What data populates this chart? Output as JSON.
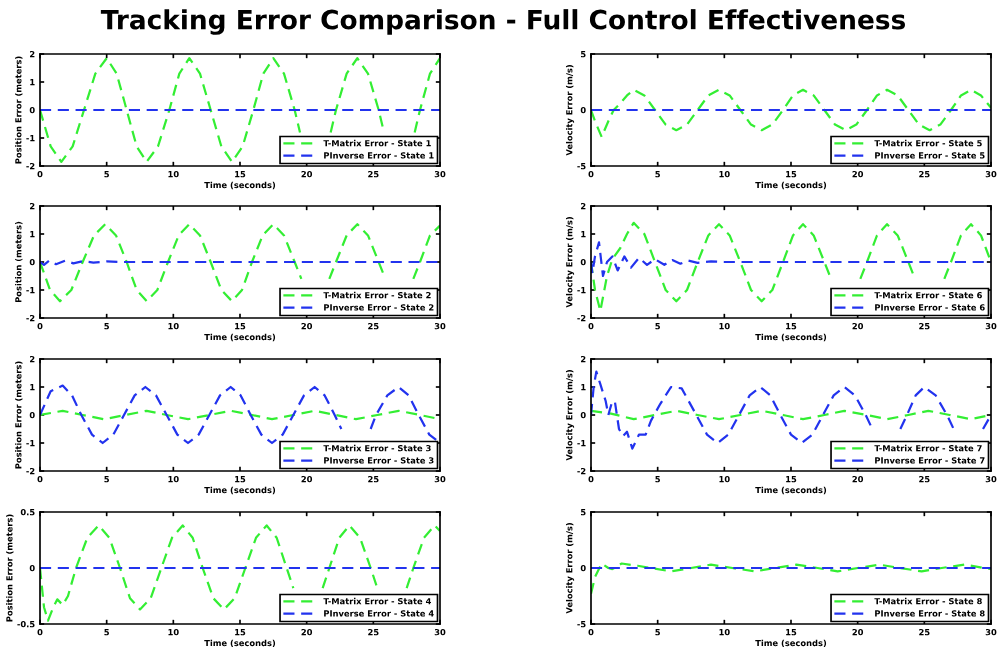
{
  "chart_data": [
    {
      "type": "line",
      "title": "Tracking Error Comparison - Full Control Effectiveness",
      "xlabel": "Time (seconds)",
      "ylabel": "Position Error (meters)",
      "xlim": [
        0,
        30
      ],
      "xticks": [
        0,
        5,
        10,
        15,
        20,
        25,
        30
      ],
      "ylim": [
        -2,
        2
      ],
      "yticks": [
        -2,
        -1,
        0,
        1,
        2
      ],
      "legend": "bottom right",
      "line_style": "dashed",
      "series": [
        {
          "name": "T-Matrix Error - State 1",
          "color": "#33ee33",
          "x": [
            0,
            0.8,
            1.6,
            2.45,
            3.3,
            4.15,
            5,
            5.75,
            6.5,
            7.25,
            8,
            8.85,
            9.7,
            10.45,
            11.2,
            12,
            12.8,
            13.6,
            14.4,
            15.2,
            16,
            16.75,
            17.5,
            18.3,
            19.1,
            19.5,
            20.7,
            21.8,
            22.2,
            23,
            23.8,
            24.6,
            25.4,
            25.8,
            27,
            28.1,
            28.5,
            29.25,
            30
          ],
          "values": [
            0,
            -1.3,
            -1.85,
            -1.3,
            0,
            1.3,
            1.85,
            1.3,
            0,
            -1.3,
            -1.85,
            -1.3,
            0,
            1.3,
            1.85,
            1.3,
            0,
            -1.3,
            -1.85,
            -1.3,
            0,
            1.3,
            1.85,
            1.3,
            0,
            -0.8,
            null,
            -0.8,
            0,
            1.3,
            1.85,
            1.3,
            0,
            -0.8,
            null,
            -0.8,
            0,
            1.3,
            1.85
          ]
        },
        {
          "name": "PInverse Error - State 1",
          "color": "#2233ee",
          "x": [
            0,
            30
          ],
          "values": [
            0,
            0
          ]
        }
      ]
    },
    {
      "type": "line",
      "xlabel": "Time (seconds)",
      "ylabel": "Velocity Error (m/s)",
      "xlim": [
        0,
        30
      ],
      "xticks": [
        0,
        5,
        10,
        15,
        20,
        25,
        30
      ],
      "ylim": [
        -5,
        5
      ],
      "yticks": [
        -5,
        0,
        5
      ],
      "legend": "bottom right",
      "line_style": "dashed",
      "series": [
        {
          "name": "T-Matrix Error - State 5",
          "color": "#33ee33",
          "x": [
            0,
            0.3,
            0.8,
            1.3,
            1.7,
            2.2,
            2.7,
            3.2,
            4,
            4.8,
            5.6,
            6.4,
            7.2,
            8,
            8.8,
            9.6,
            10.4,
            11.2,
            12,
            12.8,
            13.6,
            14.4,
            15.15,
            15.9,
            16.7,
            17.5,
            18.3,
            19.1,
            19.9,
            20.7,
            21.45,
            22.2,
            23,
            23.8,
            24.6,
            25.4,
            26.2,
            27,
            27.75,
            28.5,
            29.25,
            30
          ],
          "values": [
            0,
            -1,
            -2.4,
            -1,
            0,
            0.6,
            1.3,
            1.8,
            1.3,
            0,
            -1.3,
            -1.8,
            -1.3,
            0,
            1.3,
            1.8,
            1.3,
            0,
            -1.3,
            -1.8,
            -1.3,
            0,
            1.3,
            1.8,
            1.3,
            0,
            -1.3,
            -1.8,
            -1.3,
            0,
            1.3,
            1.8,
            1.3,
            0,
            -1.3,
            -1.8,
            -1.3,
            0,
            1.3,
            1.8,
            1.3,
            0.2
          ]
        },
        {
          "name": "PInverse Error - State 5",
          "color": "#2233ee",
          "x": [
            0,
            30
          ],
          "values": [
            0,
            0
          ]
        }
      ]
    },
    {
      "type": "line",
      "xlabel": "Time (seconds)",
      "ylabel": "Position (meters)",
      "xlim": [
        0,
        30
      ],
      "xticks": [
        0,
        5,
        10,
        15,
        20,
        25,
        30
      ],
      "ylim": [
        -2,
        2
      ],
      "yticks": [
        -2,
        -1,
        0,
        1,
        2
      ],
      "legend": "bottom right",
      "line_style": "dashed",
      "series": [
        {
          "name": "T-Matrix Error - State 2",
          "color": "#33ee33",
          "x": [
            0,
            0.75,
            1.5,
            2.35,
            3.2,
            4.05,
            4.9,
            5.7,
            6.5,
            7.25,
            8,
            8.8,
            9.6,
            10.4,
            11.2,
            12,
            12.8,
            13.6,
            14.4,
            15.15,
            15.9,
            16.7,
            17.5,
            18.3,
            19.1,
            19.6,
            20.7,
            21.7,
            22.2,
            23,
            23.8,
            24.6,
            25.4,
            25.9,
            27,
            28,
            28.5,
            29.25,
            30
          ],
          "values": [
            0,
            -1,
            -1.4,
            -1,
            0,
            0.95,
            1.35,
            0.95,
            0,
            -1,
            -1.4,
            -1,
            0,
            0.95,
            1.35,
            0.95,
            0,
            -1,
            -1.4,
            -1,
            0,
            0.95,
            1.35,
            0.95,
            0,
            -0.6,
            null,
            -0.6,
            0,
            0.95,
            1.35,
            0.95,
            0,
            -0.6,
            null,
            -0.6,
            0,
            0.95,
            1.3
          ]
        },
        {
          "name": "PInverse Error - State 2",
          "color": "#2233ee",
          "x": [
            0,
            0.3,
            0.7,
            1.2,
            1.9,
            2.5,
            3.2,
            4,
            5,
            6,
            30
          ],
          "values": [
            0,
            -0.1,
            0.05,
            -0.08,
            0.05,
            -0.05,
            0.03,
            -0.02,
            0.02,
            0,
            0
          ]
        }
      ]
    },
    {
      "type": "line",
      "xlabel": "Time (seconds)",
      "ylabel": "Velocity Error (m/s)",
      "xlim": [
        0,
        30
      ],
      "xticks": [
        0,
        5,
        10,
        15,
        20,
        25,
        30
      ],
      "ylim": [
        -2,
        2
      ],
      "yticks": [
        -2,
        -1,
        0,
        1,
        2
      ],
      "legend": "bottom right",
      "line_style": "dashed",
      "series": [
        {
          "name": "T-Matrix Error - State 6",
          "color": "#33ee33",
          "x": [
            0,
            0.3,
            0.7,
            1.2,
            1.6,
            2.2,
            2.7,
            3.2,
            4,
            4.8,
            5.6,
            6.4,
            7.2,
            8,
            8.8,
            9.6,
            10.4,
            11.2,
            12,
            12.8,
            13.6,
            14.4,
            15.15,
            15.9,
            16.7,
            17.5,
            18,
            19.1,
            20.2,
            20.7,
            21.45,
            22.2,
            23,
            23.8,
            24.3,
            25.4,
            26.5,
            27,
            27.75,
            28.5,
            29.25,
            30
          ],
          "values": [
            0,
            -1,
            -1.75,
            -0.5,
            0.1,
            0.5,
            1,
            1.4,
            1,
            0,
            -1,
            -1.4,
            -1,
            0,
            0.95,
            1.35,
            0.95,
            0,
            -1,
            -1.4,
            -1,
            0,
            0.95,
            1.35,
            0.95,
            0,
            -0.6,
            null,
            -0.6,
            0,
            0.95,
            1.35,
            0.95,
            0,
            -0.6,
            null,
            -0.6,
            0,
            0.95,
            1.35,
            0.95,
            0
          ]
        },
        {
          "name": "PInverse Error - State 6",
          "color": "#2233ee",
          "x": [
            0,
            0.1,
            0.3,
            0.6,
            0.9,
            1.2,
            1.6,
            2,
            2.5,
            3,
            3.6,
            4.2,
            4.8,
            5.5,
            6.1,
            6.7,
            7.3,
            8,
            9,
            10,
            30
          ],
          "values": [
            0,
            -0.4,
            0.2,
            0.7,
            -0.5,
            0,
            0.2,
            -0.3,
            0.2,
            -0.2,
            0.15,
            -0.1,
            0.1,
            -0.1,
            0.07,
            -0.06,
            0.05,
            -0.03,
            0.02,
            0,
            0
          ]
        }
      ]
    },
    {
      "type": "line",
      "xlabel": "Time (seconds)",
      "ylabel": "Position Error (meters)",
      "xlim": [
        0,
        30
      ],
      "xticks": [
        0,
        5,
        10,
        15,
        20,
        25,
        30
      ],
      "ylim": [
        -2,
        2
      ],
      "yticks": [
        -2,
        -1,
        0,
        1,
        2
      ],
      "legend": "bottom right",
      "line_style": "dashed",
      "series": [
        {
          "name": "T-Matrix Error - State 3",
          "color": "#33ee33",
          "x": [
            0,
            1.7,
            3.2,
            4.8,
            6.4,
            8,
            9.5,
            11.1,
            12.7,
            14.3,
            15.9,
            17.4,
            19,
            20.6,
            22.2,
            23.7,
            25.3,
            26.9,
            28.5,
            30
          ],
          "values": [
            0,
            0.15,
            0,
            -0.15,
            0,
            0.15,
            0,
            -0.15,
            0,
            0.15,
            0,
            -0.15,
            0,
            0.15,
            0,
            -0.15,
            0,
            0.15,
            0,
            -0.15
          ]
        },
        {
          "name": "PInverse Error - State 3",
          "color": "#2233ee",
          "x": [
            0,
            0.8,
            1.7,
            2.4,
            3.1,
            3.9,
            4.7,
            5.5,
            6.3,
            7.1,
            7.9,
            8.7,
            9.5,
            10.3,
            11.1,
            11.9,
            12.7,
            13.5,
            14.3,
            15.05,
            15.8,
            16.6,
            17.4,
            18.2,
            19,
            19.8,
            20.6,
            21.35,
            22.1,
            22.6,
            23.7,
            24.8,
            25.2,
            26.05,
            26.9,
            27.65,
            28.4,
            29.2,
            30
          ],
          "values": [
            0,
            0.85,
            1.05,
            0.7,
            0,
            -0.7,
            -1,
            -0.7,
            0,
            0.7,
            1,
            0.7,
            0,
            -0.7,
            -1,
            -0.7,
            0,
            0.7,
            1,
            0.7,
            0,
            -0.7,
            -1,
            -0.7,
            0,
            0.7,
            1,
            0.7,
            0,
            -0.5,
            null,
            -0.5,
            0,
            0.7,
            1,
            0.7,
            0,
            -0.7,
            -1
          ]
        }
      ]
    },
    {
      "type": "line",
      "xlabel": "Time (seconds)",
      "ylabel": "Velocity Error (m/s)",
      "xlim": [
        0,
        30
      ],
      "xticks": [
        0,
        5,
        10,
        15,
        20,
        25,
        30
      ],
      "ylim": [
        -2,
        2
      ],
      "yticks": [
        -2,
        -1,
        0,
        1,
        2
      ],
      "legend": "bottom right",
      "line_style": "dashed",
      "series": [
        {
          "name": "T-Matrix Error - State 7",
          "color": "#33ee33",
          "x": [
            0,
            1.5,
            3.2,
            4.8,
            6.4,
            8,
            9.6,
            11.2,
            12.8,
            14.4,
            15.9,
            17.5,
            19,
            20.7,
            22.2,
            23.8,
            25.3,
            26.9,
            28.5,
            30
          ],
          "values": [
            0.15,
            0.05,
            -0.15,
            0,
            0.15,
            0,
            -0.15,
            0,
            0.15,
            0,
            -0.15,
            0,
            0.15,
            0,
            -0.15,
            0,
            0.15,
            0,
            -0.15,
            0
          ]
        },
        {
          "name": "PInverse Error - State 7",
          "color": "#2233ee",
          "x": [
            0,
            0.2,
            0.4,
            0.7,
            1.1,
            1.3,
            1.6,
            1.8,
            2.1,
            2.4,
            2.7,
            3.1,
            3.6,
            4.1,
            4.5,
            5.2,
            6,
            6.8,
            7.9,
            8.7,
            9.5,
            10.3,
            11.1,
            11.9,
            12.7,
            13.45,
            14.2,
            15,
            15.8,
            16.6,
            17.4,
            18.2,
            19,
            19.8,
            20.6,
            21.1,
            22.2,
            23.2,
            23.7,
            24.35,
            25,
            25.85,
            26.7,
            27.2,
            28.3,
            29.4,
            30
          ],
          "values": [
            0,
            1.0,
            1.55,
            1.1,
            0.5,
            0,
            0.5,
            0.45,
            -0.5,
            -0.75,
            -0.6,
            -1.2,
            -0.7,
            -0.7,
            -0.2,
            0.4,
            1.0,
            0.95,
            0,
            -0.7,
            -1.0,
            -0.7,
            0,
            0.7,
            1.0,
            0.7,
            0,
            -0.7,
            -1.0,
            -0.7,
            0,
            0.7,
            1.0,
            0.7,
            0,
            -0.5,
            null,
            -0.5,
            0,
            0.7,
            1.0,
            0.7,
            0,
            -0.5,
            null,
            -0.5,
            0
          ]
        }
      ]
    },
    {
      "type": "line",
      "xlabel": "Time (seconds)",
      "ylabel": "Position Error (meters)",
      "xlim": [
        0,
        30
      ],
      "xticks": [
        0,
        5,
        10,
        15,
        20,
        25,
        30
      ],
      "ylim": [
        -0.5,
        0.5
      ],
      "yticks": [
        -0.5,
        0,
        0.5
      ],
      "legend": "bottom right",
      "line_style": "dashed",
      "series": [
        {
          "name": "T-Matrix Error - State 4",
          "color": "#33ee33",
          "x": [
            0,
            0.3,
            0.6,
            1.0,
            1.3,
            1.7,
            2.1,
            2.7,
            3.55,
            4.4,
            5.2,
            6,
            6.75,
            7.5,
            8.3,
            9.1,
            9.9,
            10.7,
            11.45,
            12.2,
            13,
            13.8,
            14.6,
            15.4,
            16.2,
            17,
            17.75,
            18.5,
            19,
            20.1,
            21.2,
            21.7,
            22.45,
            23.2,
            24,
            24.8,
            25.3,
            26.4,
            27.5,
            28,
            28.8,
            29.6,
            30
          ],
          "values": [
            0,
            -0.35,
            -0.47,
            -0.35,
            -0.28,
            -0.33,
            -0.25,
            0,
            0.27,
            0.38,
            0.27,
            0,
            -0.27,
            -0.37,
            -0.27,
            0,
            0.27,
            0.38,
            0.27,
            0,
            -0.27,
            -0.37,
            -0.27,
            0,
            0.27,
            0.38,
            0.27,
            0,
            -0.18,
            null,
            -0.18,
            0,
            0.27,
            0.38,
            0.27,
            0,
            -0.18,
            null,
            -0.18,
            0,
            0.27,
            0.38,
            0.33
          ]
        },
        {
          "name": "PInverse Error - State 4",
          "color": "#2233ee",
          "x": [
            0,
            30
          ],
          "values": [
            0,
            0
          ]
        }
      ]
    },
    {
      "type": "line",
      "xlabel": "Time (seconds)",
      "ylabel": "Velocity Error (m/s)",
      "xlim": [
        0,
        30
      ],
      "xticks": [
        0,
        5,
        10,
        15,
        20,
        25,
        30
      ],
      "ylim": [
        -5,
        5
      ],
      "yticks": [
        -5,
        0,
        5
      ],
      "legend": "bottom right",
      "line_style": "dashed",
      "series": [
        {
          "name": "T-Matrix Error - State 8",
          "color": "#33ee33",
          "x": [
            0,
            0.3,
            0.8,
            1.3,
            1.6,
            2.3,
            3.5,
            4.5,
            6,
            7.5,
            9,
            10.6,
            12.3,
            13.8,
            15.4,
            17,
            18.5,
            20,
            21.6,
            23.2,
            24.8,
            26.3,
            28,
            29.5,
            30
          ],
          "values": [
            -2.3,
            -0.8,
            0.4,
            0,
            -0.1,
            0.4,
            0.2,
            0,
            -0.3,
            0,
            0.3,
            0,
            -0.3,
            0,
            0.3,
            0,
            -0.3,
            0,
            0.3,
            0,
            -0.3,
            0,
            0.3,
            0,
            -0.1
          ]
        },
        {
          "name": "PInverse Error - State 8",
          "color": "#2233ee",
          "x": [
            0,
            30
          ],
          "values": [
            0,
            0
          ]
        }
      ]
    }
  ]
}
